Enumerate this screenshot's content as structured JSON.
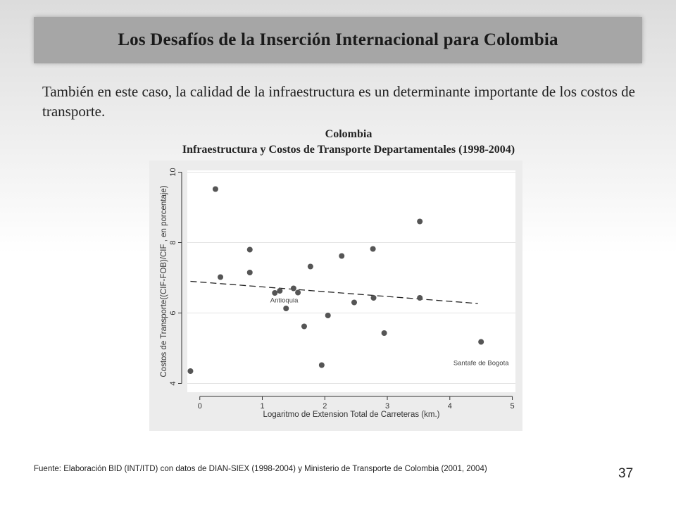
{
  "slide": {
    "title": "Los Desafíos de la Inserción Internacional para Colombia",
    "intro": "También en este caso, la calidad de la infraestructura es un determinante importante de los costos de transporte.",
    "footer": "Fuente: Elaboración BID (INT/ITD)  con datos de  DIAN-SIEX (1998-2004)  y Ministerio de Transporte de Colombia (2001, 2004)",
    "page_number": "37"
  },
  "chart_data": {
    "type": "scatter",
    "title": "Colombia",
    "subtitle": "Infraestructura y Costos de Transporte Departamentales (1998-2004)",
    "xlabel": "Logaritmo de Extension Total de Carreteras  (km.)",
    "ylabel": "Costos de Transporte((CIF-FOB)/CIF ,  en porcentaje)",
    "xlim": [
      -0.2,
      5.05
    ],
    "ylim": [
      3.75,
      10.05
    ],
    "xticks": [
      "0",
      "1",
      "2",
      "3",
      "4",
      "5"
    ],
    "yticks": [
      "4",
      "6",
      "8",
      "10"
    ],
    "grid": true,
    "series": [
      {
        "points": [
          {
            "x": -0.15,
            "y": 4.35
          },
          {
            "x": 0.25,
            "y": 9.52
          },
          {
            "x": 0.33,
            "y": 7.02
          },
          {
            "x": 0.8,
            "y": 7.8
          },
          {
            "x": 0.8,
            "y": 7.15
          },
          {
            "x": 1.2,
            "y": 6.57
          },
          {
            "x": 1.28,
            "y": 6.63
          },
          {
            "x": 1.38,
            "y": 6.13
          },
          {
            "x": 1.5,
            "y": 6.7
          },
          {
            "x": 1.57,
            "y": 6.58
          },
          {
            "x": 1.67,
            "y": 5.62
          },
          {
            "x": 1.77,
            "y": 7.32
          },
          {
            "x": 1.95,
            "y": 4.52
          },
          {
            "x": 2.05,
            "y": 5.93
          },
          {
            "x": 2.27,
            "y": 7.62
          },
          {
            "x": 2.47,
            "y": 6.3
          },
          {
            "x": 2.77,
            "y": 7.82
          },
          {
            "x": 2.78,
            "y": 6.43
          },
          {
            "x": 2.95,
            "y": 5.43
          },
          {
            "x": 3.52,
            "y": 8.6
          },
          {
            "x": 3.52,
            "y": 6.43
          },
          {
            "x": 4.5,
            "y": 5.18
          }
        ]
      }
    ],
    "trendline": {
      "x": [
        -0.15,
        4.45
      ],
      "y": [
        6.9,
        6.27
      ],
      "style": "dashed"
    },
    "annotations": [
      {
        "text": "Antioquia",
        "x": 1.35,
        "y": 6.3
      },
      {
        "text": "Santafe de Bogota",
        "x": 4.5,
        "y": 4.52
      }
    ]
  }
}
